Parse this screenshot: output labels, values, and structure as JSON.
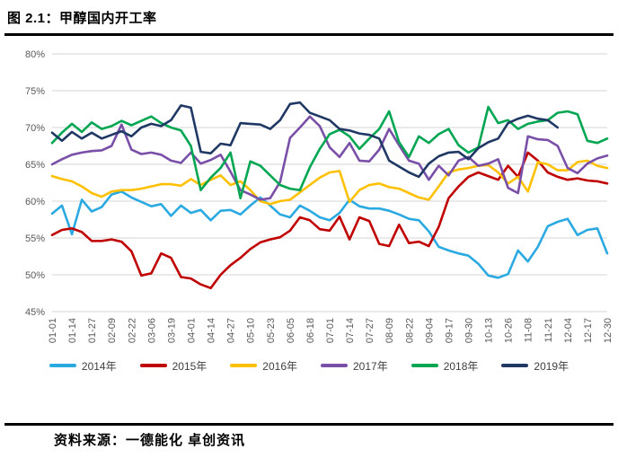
{
  "title": "图 2.1：甲醇国内开工率",
  "footer": "资料来源：一德能化 卓创资讯",
  "chart_data": {
    "type": "line",
    "title": "甲醇国内开工率",
    "unit": "%",
    "ylim": [
      45,
      80
    ],
    "ytick_step": 5,
    "ytick_labels": [
      "45%",
      "50%",
      "55%",
      "60%",
      "65%",
      "70%",
      "75%",
      "80%"
    ],
    "grid": "horizontal",
    "legend_position": "bottom",
    "points_per_series": 57,
    "x_note": "weekly points; axis labels mark every second point",
    "x_tick_labels": [
      "01-01",
      "01-14",
      "01-27",
      "02-09",
      "02-22",
      "03-06",
      "03-19",
      "04-01",
      "04-14",
      "04-27",
      "05-10",
      "05-23",
      "06-05",
      "06-18",
      "07-01",
      "07-14",
      "07-27",
      "08-09",
      "08-22",
      "09-04",
      "09-17",
      "09-30",
      "10-13",
      "10-26",
      "11-08",
      "11-21",
      "12-04",
      "12-17",
      "12-30"
    ],
    "series": [
      {
        "name": "2014年",
        "color": "#2BA9E1",
        "values": [
          58.3,
          59.4,
          55.5,
          60.2,
          58.6,
          59.2,
          60.9,
          61.3,
          60.5,
          59.9,
          59.3,
          59.6,
          58.0,
          59.4,
          58.4,
          58.8,
          57.4,
          58.7,
          58.8,
          58.2,
          59.4,
          60.5,
          59.4,
          58.2,
          57.8,
          59.4,
          58.7,
          57.8,
          57.4,
          58.4,
          60.2,
          59.3,
          59.0,
          59.0,
          58.7,
          58.2,
          57.6,
          57.4,
          55.9,
          53.8,
          53.3,
          52.9,
          52.6,
          51.5,
          49.9,
          49.6,
          50.1,
          53.3,
          51.8,
          53.8,
          56.6,
          57.2,
          57.6,
          55.4,
          56.1,
          56.3,
          52.9
        ]
      },
      {
        "name": "2015年",
        "color": "#C00000",
        "values": [
          55.4,
          56.1,
          56.3,
          55.8,
          54.6,
          54.6,
          54.8,
          54.5,
          53.2,
          49.9,
          50.2,
          52.9,
          52.3,
          49.7,
          49.5,
          48.7,
          48.2,
          50.0,
          51.3,
          52.3,
          53.5,
          54.4,
          54.8,
          55.1,
          56.0,
          57.8,
          57.4,
          56.2,
          56.0,
          57.9,
          54.8,
          57.8,
          57.3,
          54.2,
          53.9,
          56.8,
          54.3,
          54.5,
          53.9,
          56.5,
          60.4,
          62.0,
          63.3,
          63.9,
          63.4,
          62.9,
          64.8,
          63.3,
          66.6,
          65.5,
          63.9,
          63.3,
          62.9,
          63.1,
          62.8,
          62.7,
          62.4
        ]
      },
      {
        "name": "2016年",
        "color": "#FFC000",
        "values": [
          63.4,
          63.0,
          62.7,
          62.0,
          61.1,
          60.6,
          61.3,
          61.5,
          61.5,
          61.7,
          62.0,
          62.3,
          62.3,
          62.1,
          63.0,
          62.2,
          62.9,
          63.5,
          62.2,
          62.7,
          61.5,
          60.0,
          59.6,
          60.0,
          60.2,
          61.2,
          62.2,
          63.2,
          63.9,
          64.1,
          59.9,
          61.5,
          62.2,
          62.4,
          61.9,
          61.7,
          61.1,
          60.5,
          60.2,
          62.0,
          63.9,
          64.3,
          64.5,
          64.8,
          64.9,
          63.9,
          62.4,
          63.3,
          61.3,
          65.3,
          65.0,
          64.2,
          64.2,
          65.3,
          65.5,
          64.8,
          64.5
        ]
      },
      {
        "name": "2017年",
        "color": "#7A4FA8",
        "values": [
          65.0,
          65.7,
          66.3,
          66.6,
          66.8,
          66.9,
          67.5,
          70.4,
          67.0,
          66.4,
          66.6,
          66.3,
          65.5,
          65.2,
          66.6,
          65.1,
          65.6,
          66.3,
          64.0,
          61.5,
          60.9,
          60.2,
          60.4,
          62.6,
          68.6,
          70.0,
          71.5,
          70.2,
          67.3,
          66.0,
          67.9,
          65.5,
          65.4,
          67.0,
          69.8,
          67.6,
          65.5,
          65.1,
          62.9,
          64.8,
          63.5,
          65.5,
          66.0,
          64.8,
          65.1,
          65.7,
          61.8,
          61.1,
          68.8,
          68.4,
          68.3,
          67.5,
          64.5,
          63.8,
          65.1,
          65.8,
          66.2
        ]
      },
      {
        "name": "2018年",
        "color": "#00A651",
        "values": [
          67.9,
          69.3,
          70.5,
          69.4,
          70.7,
          69.8,
          70.2,
          70.9,
          70.3,
          70.9,
          71.5,
          70.6,
          70.0,
          69.6,
          67.5,
          61.5,
          63.2,
          64.5,
          66.6,
          60.4,
          65.4,
          64.8,
          63.5,
          62.2,
          61.7,
          61.5,
          64.6,
          67.1,
          69.1,
          69.7,
          68.8,
          67.1,
          68.5,
          69.8,
          72.2,
          68.0,
          66.0,
          68.8,
          67.9,
          69.1,
          69.8,
          67.6,
          66.6,
          67.3,
          72.8,
          70.6,
          71.0,
          69.8,
          70.5,
          70.8,
          71.0,
          72.0,
          72.2,
          71.8,
          68.2,
          67.9,
          68.5
        ]
      },
      {
        "name": "2019年",
        "color": "#1F3864",
        "values": [
          69.3,
          68.2,
          69.4,
          68.5,
          69.3,
          68.5,
          69.0,
          69.5,
          68.8,
          70.0,
          70.5,
          70.2,
          71.0,
          73.0,
          72.7,
          66.7,
          66.5,
          67.8,
          67.6,
          70.6,
          70.5,
          70.4,
          69.8,
          71.0,
          73.2,
          73.4,
          72.0,
          71.5,
          71.0,
          69.8,
          69.6,
          69.2,
          69.0,
          68.5,
          65.5,
          64.7,
          63.9,
          63.3,
          65.1,
          66.1,
          66.6,
          66.7,
          65.7,
          67.2,
          68.0,
          68.5,
          70.6,
          71.2,
          71.6,
          71.2,
          71.0,
          70.0,
          null,
          null,
          null,
          null,
          null
        ]
      }
    ]
  }
}
